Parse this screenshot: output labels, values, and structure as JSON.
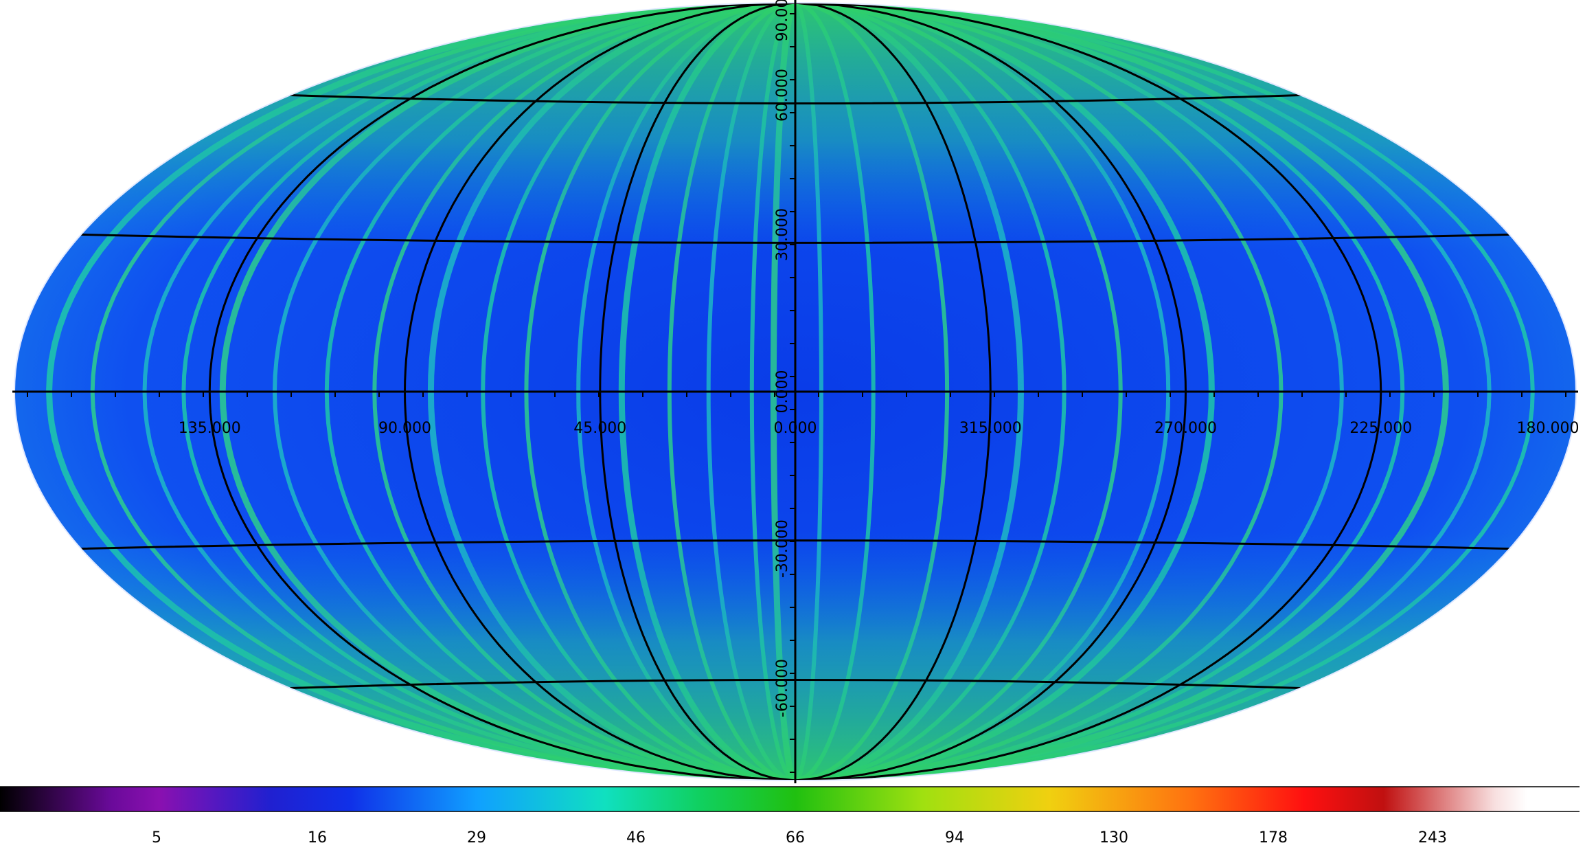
{
  "map": {
    "projection": "mollweide",
    "longitude_labels": [
      "135.000",
      "90.000",
      "45.000",
      "0.000",
      "315.000",
      "270.000",
      "225.000",
      "180.000"
    ],
    "longitude_values": [
      135,
      90,
      45,
      0,
      315,
      270,
      225,
      180
    ],
    "latitude_labels": [
      "90.000",
      "60.000",
      "30.000",
      "0.000",
      "-30.000",
      "-60.000"
    ],
    "latitude_values": [
      90,
      60,
      30,
      0,
      -30,
      -60
    ],
    "grid_color": "#000000",
    "background_color": "#0a3cf0"
  },
  "colorbar": {
    "tick_labels": [
      "5",
      "16",
      "29",
      "46",
      "66",
      "94",
      "130",
      "178",
      "243"
    ],
    "colors": [
      "#000000",
      "#6a0a9a",
      "#1030e8",
      "#10b0ff",
      "#10e8b0",
      "#20d020",
      "#e8e010",
      "#ff6010",
      "#e80010",
      "#ffffff"
    ]
  }
}
